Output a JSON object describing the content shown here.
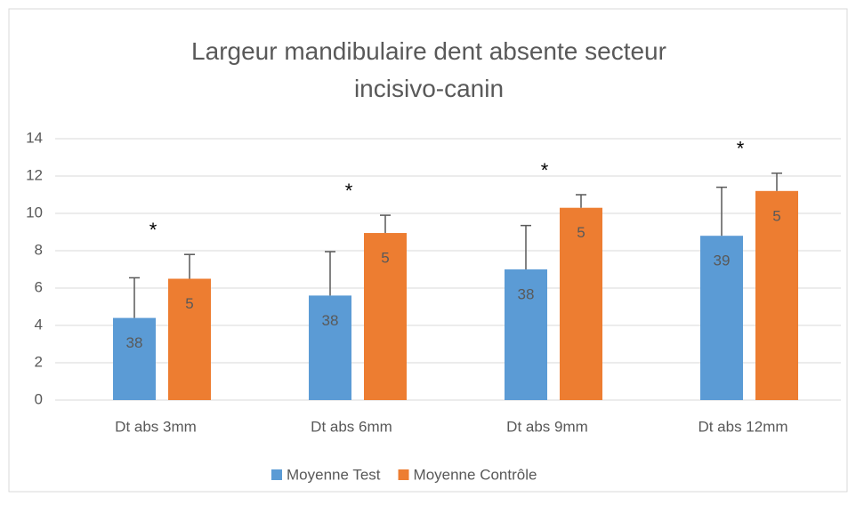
{
  "chart_data": {
    "type": "bar",
    "title": "Largeur mandibulaire dent absente secteur incisivo-canin",
    "categories": [
      "Dt abs 3mm",
      "Dt abs 6mm",
      "Dt abs 9mm",
      "Dt abs 12mm"
    ],
    "series": [
      {
        "name": "Moyenne Test",
        "color": "#5b9bd5",
        "values": [
          4.4,
          5.6,
          7.0,
          8.8
        ],
        "errors": [
          2.15,
          2.35,
          2.35,
          2.6
        ],
        "sample_sizes": [
          "38",
          "38",
          "38",
          "39"
        ]
      },
      {
        "name": "Moyenne Contrôle",
        "color": "#ed7d31",
        "values": [
          6.5,
          8.95,
          10.3,
          11.2
        ],
        "errors": [
          1.3,
          0.95,
          0.7,
          0.95
        ],
        "sample_sizes": [
          "5",
          "5",
          "5",
          "5"
        ]
      }
    ],
    "significance": [
      "*",
      "*",
      "*",
      "*"
    ],
    "ylim": [
      0,
      14
    ],
    "yticks": [
      0,
      2,
      4,
      6,
      8,
      10,
      12,
      14
    ],
    "grid": true,
    "legend": "bottom"
  }
}
